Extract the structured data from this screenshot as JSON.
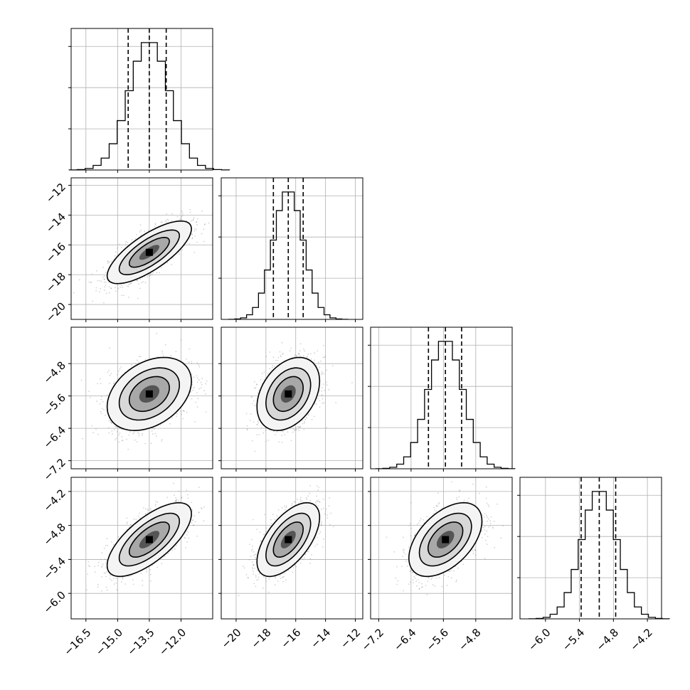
{
  "chart_data": {
    "type": "corner",
    "grid": true,
    "scatter_color": "#808080",
    "line_color": "#000000",
    "histogram_bins": 20,
    "quantile_style": "dashed",
    "parameters": [
      {
        "index": 0,
        "range": [
          -17.2,
          -10.5
        ],
        "ticks": [
          -16.5,
          -15.0,
          -13.5,
          -12.0
        ],
        "tick_labels": [
          "−16.5",
          "−15.0",
          "−13.5",
          "−12.0"
        ],
        "center": -13.5,
        "sigma": 0.95,
        "quantiles": [
          -14.5,
          -13.5,
          -12.7
        ]
      },
      {
        "index": 1,
        "range": [
          -21.0,
          -11.5
        ],
        "ticks": [
          -20,
          -18,
          -16,
          -14,
          -12
        ],
        "tick_labels": [
          "−20",
          "−18",
          "−16",
          "−14",
          "−12"
        ],
        "center": -16.5,
        "sigma": 1.0,
        "quantiles": [
          -17.5,
          -16.5,
          -15.5
        ]
      },
      {
        "index": 2,
        "range": [
          -7.4,
          -3.9
        ],
        "ticks": [
          -7.2,
          -6.4,
          -5.6,
          -4.8
        ],
        "tick_labels": [
          "−7.2",
          "−6.4",
          "−5.6",
          "−4.8"
        ],
        "center": -5.55,
        "sigma": 0.43,
        "quantiles": [
          -5.97,
          -5.55,
          -5.15
        ]
      },
      {
        "index": 3,
        "range": [
          -6.45,
          -3.95
        ],
        "ticks": [
          -6.0,
          -5.4,
          -4.8,
          -4.2
        ],
        "tick_labels": [
          "−6.0",
          "−5.4",
          "−4.8",
          "−4.2"
        ],
        "center": -5.05,
        "sigma": 0.31,
        "quantiles": [
          -5.37,
          -5.05,
          -4.76
        ]
      }
    ],
    "correlations": {
      "1-0": 0.75,
      "2-0": 0.35,
      "2-1": 0.35,
      "3-0": 0.7,
      "3-1": 0.6,
      "3-2": 0.5
    }
  }
}
